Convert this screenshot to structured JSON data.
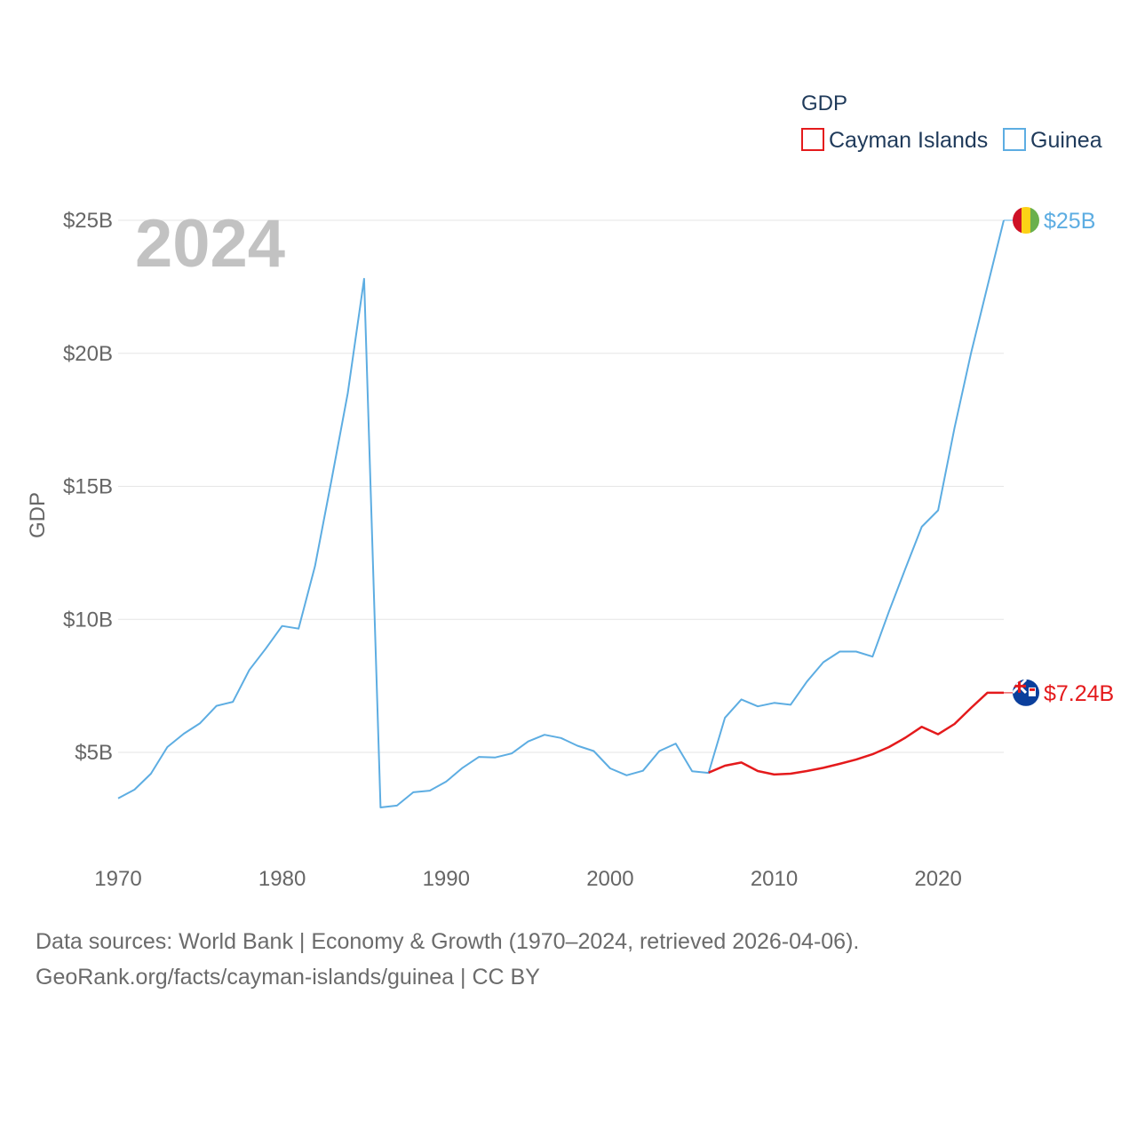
{
  "chart_data": {
    "type": "line",
    "title": "GDP",
    "year_label": "2024",
    "ylabel": "GDP",
    "xlabel": "",
    "xlim": [
      1970,
      2024
    ],
    "ylim": [
      0,
      25000000000
    ],
    "x_ticks": [
      1970,
      1980,
      1990,
      2000,
      2010,
      2020
    ],
    "y_ticks": [
      {
        "value": 5000000000,
        "label": "$5B"
      },
      {
        "value": 10000000000,
        "label": "$10B"
      },
      {
        "value": 15000000000,
        "label": "$15B"
      },
      {
        "value": 20000000000,
        "label": "$20B"
      },
      {
        "value": 25000000000,
        "label": "$25B"
      }
    ],
    "legend": {
      "title": "GDP",
      "position": "top-right"
    },
    "series": [
      {
        "name": "Cayman Islands",
        "color": "#e41a1c",
        "end_label": "$7.24B",
        "flag_icon": "cayman-islands-flag-icon",
        "x": [
          2006,
          2007,
          2008,
          2009,
          2010,
          2011,
          2012,
          2013,
          2014,
          2015,
          2016,
          2017,
          2018,
          2019,
          2020,
          2021,
          2022,
          2023,
          2024
        ],
        "values": [
          4240000000,
          4500000000,
          4620000000,
          4300000000,
          4170000000,
          4200000000,
          4300000000,
          4420000000,
          4570000000,
          4730000000,
          4930000000,
          5200000000,
          5550000000,
          5960000000,
          5680000000,
          6070000000,
          6670000000,
          7240000000,
          7240000000
        ]
      },
      {
        "name": "Guinea",
        "color": "#5dade2",
        "end_label": "$25B",
        "flag_icon": "guinea-flag-icon",
        "x": [
          1970,
          1971,
          1972,
          1973,
          1974,
          1975,
          1976,
          1977,
          1978,
          1979,
          1980,
          1981,
          1982,
          1983,
          1984,
          1985,
          1986,
          1987,
          1988,
          1989,
          1990,
          1991,
          1992,
          1993,
          1994,
          1995,
          1996,
          1997,
          1998,
          1999,
          2000,
          2001,
          2002,
          2003,
          2004,
          2005,
          2006,
          2007,
          2008,
          2009,
          2010,
          2011,
          2012,
          2013,
          2014,
          2015,
          2016,
          2017,
          2018,
          2019,
          2020,
          2021,
          2022,
          2023,
          2024
        ],
        "values": [
          3270000000,
          3600000000,
          4200000000,
          5200000000,
          5700000000,
          6100000000,
          6750000000,
          6900000000,
          8100000000,
          8900000000,
          9750000000,
          9650000000,
          12000000000,
          15200000000,
          18500000000,
          22800000000,
          2930000000,
          3000000000,
          3500000000,
          3560000000,
          3900000000,
          4420000000,
          4830000000,
          4810000000,
          4960000000,
          5410000000,
          5660000000,
          5540000000,
          5250000000,
          5050000000,
          4400000000,
          4140000000,
          4310000000,
          5050000000,
          5330000000,
          4290000000,
          4230000000,
          6300000000,
          6990000000,
          6730000000,
          6860000000,
          6790000000,
          7660000000,
          8390000000,
          8790000000,
          8790000000,
          8600000000,
          10300000000,
          11900000000,
          13480000000,
          14100000000,
          17200000000,
          20000000000,
          22500000000,
          25000000000
        ]
      }
    ]
  },
  "footer": {
    "line1": "Data sources: World Bank | Economy & Growth (1970–2024, retrieved 2026-04-06).",
    "line2": "GeoRank.org/facts/cayman-islands/guinea | CC BY"
  }
}
